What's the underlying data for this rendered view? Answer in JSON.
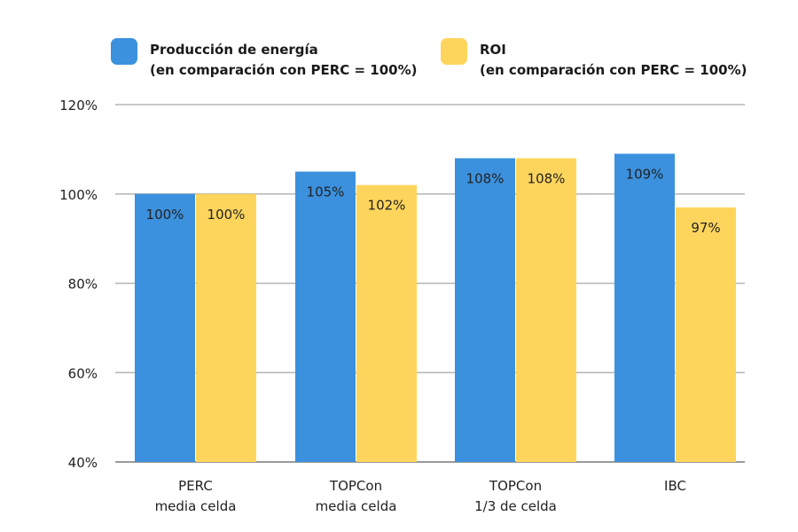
{
  "chart_data": {
    "type": "bar",
    "categories": [
      [
        "PERC",
        "media celda"
      ],
      [
        "TOPCon",
        "media celda"
      ],
      [
        "TOPCon",
        "1/3 de celda"
      ],
      [
        "IBC"
      ]
    ],
    "series": [
      {
        "name": "Producción de energía\n(en comparación con PERC = 100%)",
        "name_lines": [
          "Producción de energía",
          "(en comparación con PERC = 100%)"
        ],
        "color": "#3b91de",
        "values": [
          100,
          105,
          108,
          109
        ]
      },
      {
        "name": "ROI\n(en comparación con PERC = 100%)",
        "name_lines": [
          "ROI",
          "(en comparación con PERC = 100%)"
        ],
        "color": "#fed55c",
        "values": [
          100,
          102,
          108,
          97
        ]
      }
    ],
    "data_labels": [
      [
        "100%",
        "105%",
        "108%",
        "109%"
      ],
      [
        "100%",
        "102%",
        "108%",
        "97%"
      ]
    ],
    "yticks": [
      40,
      60,
      80,
      100,
      120
    ],
    "ytick_labels": [
      "40%",
      "60%",
      "80%",
      "100%",
      "120%"
    ],
    "ylim": [
      40,
      120
    ],
    "grid": true,
    "legend_position": "top",
    "title": "",
    "xlabel": "",
    "ylabel": ""
  }
}
